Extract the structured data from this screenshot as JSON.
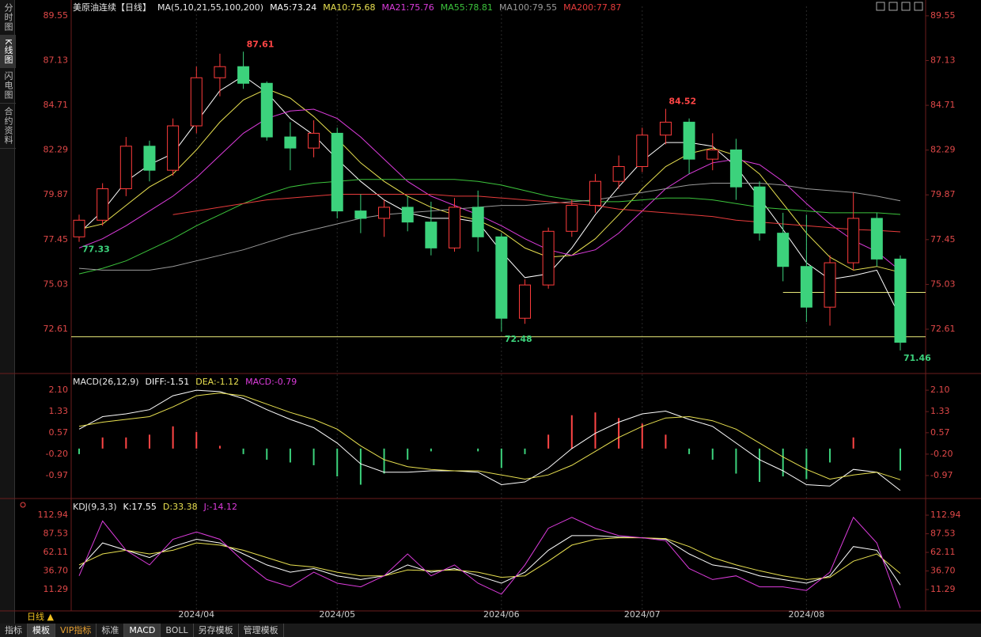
{
  "sidebar": [
    "分时图",
    "K线图",
    "闪电图",
    "合约资料"
  ],
  "period": "日线 ▲",
  "tabs": [
    "指标",
    "模板",
    "VIP指标",
    "标准",
    "MACD",
    "BOLL",
    "另存模板",
    "管理模板"
  ],
  "chart_data": [
    {
      "type": "candlestick",
      "title": "美原油连续【日线】",
      "indicator": "MA(5,10,21,55,100,200)",
      "categories": [
        null,
        null,
        null,
        null,
        null,
        "2024/04",
        null,
        null,
        null,
        null,
        null,
        "2024/05",
        null,
        null,
        null,
        null,
        null,
        null,
        "2024/06",
        null,
        null,
        null,
        null,
        null,
        "2024/07",
        null,
        null,
        null,
        null,
        null,
        null,
        "2024/08",
        null,
        null,
        null,
        null
      ],
      "open": [
        77.6,
        78.5,
        80.2,
        82.5,
        81.2,
        83.6,
        86.2,
        86.8,
        85.9,
        83.0,
        82.4,
        83.2,
        79.0,
        78.6,
        79.2,
        78.4,
        77.0,
        79.2,
        77.6,
        73.2,
        75.0,
        77.9,
        79.3,
        80.6,
        81.4,
        83.1,
        83.8,
        81.8,
        82.3,
        80.3,
        77.8,
        76.0,
        73.8,
        76.2,
        78.6,
        76.4
      ],
      "high": [
        78.8,
        80.5,
        83.0,
        82.8,
        84.0,
        86.8,
        87.5,
        87.61,
        86.0,
        83.8,
        83.9,
        83.5,
        79.9,
        79.6,
        79.8,
        79.5,
        79.7,
        80.1,
        77.8,
        75.3,
        78.1,
        79.6,
        81.0,
        82.0,
        83.5,
        84.52,
        84.0,
        83.2,
        82.9,
        80.6,
        78.9,
        78.8,
        76.6,
        80.0,
        78.9,
        76.6
      ],
      "low": [
        77.33,
        78.2,
        79.8,
        80.6,
        80.9,
        83.2,
        85.2,
        85.6,
        82.8,
        81.2,
        81.9,
        78.6,
        77.8,
        77.6,
        77.9,
        76.6,
        76.8,
        76.8,
        72.48,
        72.9,
        74.8,
        77.6,
        78.9,
        80.2,
        81.1,
        82.6,
        81.0,
        81.2,
        79.6,
        77.4,
        75.2,
        73.0,
        72.8,
        75.8,
        76.0,
        71.46
      ],
      "close": [
        78.5,
        80.2,
        82.5,
        81.2,
        83.6,
        86.2,
        86.8,
        85.9,
        83.0,
        82.4,
        83.2,
        79.0,
        78.6,
        79.2,
        78.4,
        77.0,
        79.2,
        77.6,
        73.2,
        75.0,
        77.9,
        79.3,
        80.6,
        81.4,
        83.1,
        83.8,
        81.8,
        82.3,
        80.3,
        77.8,
        76.0,
        73.8,
        76.2,
        78.6,
        76.4,
        71.9
      ],
      "up_color": "#ff3c3c",
      "down_color": "#3cd27c",
      "annotations": [
        {
          "index": 7,
          "field": "high",
          "color": "#ff4545"
        },
        {
          "index": 25,
          "field": "high",
          "color": "#ff4545"
        },
        {
          "index": 0,
          "field": "low",
          "color": "#3cd27c"
        },
        {
          "index": 18,
          "field": "low",
          "color": "#3cd27c"
        },
        {
          "index": 35,
          "field": "low",
          "color": "#3cd27c"
        }
      ],
      "hlines": [
        {
          "value": 72.2,
          "color": "#e8e878"
        },
        {
          "value": 74.6,
          "start": 30,
          "color": "#e8e878"
        }
      ],
      "series": [
        {
          "name": "MA5",
          "label": "MA5:73.24",
          "color": "#ffffff",
          "values": [
            77.8,
            79.0,
            80.6,
            81.5,
            82.1,
            83.8,
            85.5,
            86.3,
            85.4,
            84.0,
            83.1,
            81.8,
            80.6,
            79.6,
            78.9,
            78.6,
            78.6,
            78.4,
            76.8,
            75.4,
            75.6,
            77.0,
            78.8,
            80.3,
            81.7,
            82.7,
            82.7,
            82.5,
            81.4,
            79.7,
            78.0,
            76.2,
            75.3,
            75.5,
            75.8,
            73.24
          ]
        },
        {
          "name": "MA10",
          "label": "MA10:75.68",
          "color": "#e8e050",
          "values": [
            78.0,
            78.3,
            79.3,
            80.3,
            81.0,
            82.3,
            83.8,
            85.0,
            85.6,
            85.1,
            84.1,
            82.9,
            81.6,
            80.6,
            79.8,
            79.2,
            78.8,
            78.5,
            77.9,
            77.0,
            76.5,
            76.6,
            77.5,
            78.8,
            80.2,
            81.4,
            82.1,
            82.4,
            82.0,
            81.0,
            79.4,
            77.8,
            76.5,
            75.8,
            76.0,
            75.68
          ]
        },
        {
          "name": "MA21",
          "label": "MA21:75.76",
          "color": "#dd3cdd",
          "values": [
            77.0,
            77.5,
            78.2,
            79.0,
            79.8,
            80.8,
            82.0,
            83.2,
            84.0,
            84.4,
            84.5,
            84.0,
            83.0,
            81.8,
            80.6,
            79.8,
            79.3,
            78.8,
            78.2,
            77.5,
            76.9,
            76.6,
            76.9,
            77.8,
            79.0,
            80.2,
            81.0,
            81.6,
            81.8,
            81.5,
            80.6,
            79.4,
            78.3,
            77.4,
            76.8,
            75.76
          ]
        },
        {
          "name": "MA55",
          "label": "MA55:78.81",
          "color": "#3cc43c",
          "values": [
            75.6,
            75.9,
            76.3,
            76.9,
            77.5,
            78.2,
            78.8,
            79.4,
            79.9,
            80.3,
            80.5,
            80.6,
            80.7,
            80.7,
            80.7,
            80.7,
            80.7,
            80.6,
            80.4,
            80.1,
            79.8,
            79.6,
            79.5,
            79.5,
            79.6,
            79.7,
            79.7,
            79.6,
            79.4,
            79.2,
            79.1,
            79.0,
            78.9,
            78.9,
            78.9,
            78.81
          ]
        },
        {
          "name": "MA100",
          "label": "MA100:79.55",
          "color": "#9a9a9a",
          "values": [
            75.9,
            75.8,
            75.8,
            75.8,
            76.0,
            76.3,
            76.6,
            76.9,
            77.3,
            77.7,
            78.0,
            78.3,
            78.6,
            78.8,
            78.9,
            79.0,
            79.1,
            79.2,
            79.3,
            79.3,
            79.4,
            79.5,
            79.6,
            79.8,
            80.0,
            80.2,
            80.4,
            80.5,
            80.5,
            80.5,
            80.4,
            80.2,
            80.1,
            80.0,
            79.8,
            79.55
          ]
        },
        {
          "name": "MA200",
          "label": "MA200:77.87",
          "color": "#e83c3c",
          "values": [
            null,
            null,
            null,
            null,
            78.8,
            79.0,
            79.2,
            79.4,
            79.6,
            79.7,
            79.8,
            79.9,
            79.9,
            79.9,
            79.9,
            79.9,
            79.8,
            79.8,
            79.7,
            79.6,
            79.5,
            79.4,
            79.3,
            79.1,
            79.0,
            78.9,
            78.8,
            78.7,
            78.5,
            78.4,
            78.3,
            78.2,
            78.1,
            78.0,
            77.95,
            77.87
          ]
        }
      ],
      "ylim": [
        70.3,
        90.06
      ],
      "yticks": [
        89.55,
        87.13,
        84.71,
        82.29,
        79.87,
        77.45,
        75.03,
        72.61
      ]
    },
    {
      "type": "macd",
      "title": "MACD(26,12,9)",
      "series": [
        {
          "name": "DIFF",
          "label": "DIFF:-1.51",
          "color": "#ffffff",
          "values": [
            0.7,
            1.15,
            1.25,
            1.4,
            1.9,
            2.1,
            2.05,
            1.8,
            1.4,
            1.05,
            0.75,
            0.2,
            -0.55,
            -0.85,
            -0.85,
            -0.8,
            -0.8,
            -0.85,
            -1.3,
            -1.2,
            -0.7,
            0.0,
            0.55,
            0.95,
            1.25,
            1.35,
            1.05,
            0.8,
            0.2,
            -0.4,
            -0.8,
            -1.3,
            -1.35,
            -0.75,
            -0.85,
            -1.51
          ]
        },
        {
          "name": "DEA",
          "label": "DEA:-1.12",
          "color": "#e8e050",
          "values": [
            0.8,
            0.95,
            1.05,
            1.15,
            1.5,
            1.9,
            2.0,
            1.9,
            1.6,
            1.3,
            1.05,
            0.7,
            0.1,
            -0.4,
            -0.65,
            -0.75,
            -0.8,
            -0.8,
            -0.95,
            -1.1,
            -0.95,
            -0.6,
            -0.1,
            0.4,
            0.8,
            1.1,
            1.15,
            1.0,
            0.7,
            0.2,
            -0.3,
            -0.75,
            -1.1,
            -0.95,
            -0.85,
            -1.12
          ]
        },
        {
          "name": "MACD",
          "label": "MACD:-0.79",
          "color": "#dd3cdd",
          "kind": "bar",
          "up_color": "#ff4545",
          "down_color": "#3cd27c",
          "values": [
            -0.2,
            0.4,
            0.4,
            0.5,
            0.8,
            0.6,
            0.1,
            -0.2,
            -0.4,
            -0.5,
            -0.6,
            -1.0,
            -1.3,
            -0.9,
            -0.4,
            -0.1,
            0.0,
            -0.1,
            -0.7,
            -0.2,
            0.5,
            1.2,
            1.3,
            1.1,
            0.9,
            0.5,
            -0.2,
            -0.4,
            -0.9,
            -1.2,
            -1.0,
            -1.1,
            -0.5,
            0.4,
            0.0,
            -0.79
          ]
        }
      ],
      "ylim": [
        -1.74,
        2.53
      ],
      "yticks": [
        {
          "value": 2.1,
          "label": "2.10"
        },
        1.33,
        0.57,
        {
          "value": -0.2,
          "label": "-0.20"
        },
        -0.97
      ]
    },
    {
      "type": "kdj",
      "title": "KDJ(9,3,3)",
      "series": [
        {
          "name": "K",
          "label": "K:17.55",
          "color": "#ffffff",
          "values": [
            40,
            75,
            65,
            55,
            70,
            80,
            75,
            60,
            45,
            35,
            40,
            30,
            25,
            30,
            45,
            35,
            40,
            30,
            20,
            35,
            65,
            85,
            85,
            83,
            82,
            80,
            60,
            45,
            40,
            30,
            25,
            20,
            30,
            70,
            65,
            17.55
          ]
        },
        {
          "name": "D",
          "label": "D:33.38",
          "color": "#e8e050",
          "values": [
            45,
            60,
            65,
            60,
            65,
            75,
            72,
            65,
            55,
            45,
            42,
            35,
            30,
            30,
            38,
            37,
            38,
            35,
            28,
            30,
            50,
            72,
            80,
            82,
            82,
            81,
            70,
            55,
            45,
            37,
            30,
            25,
            28,
            50,
            60,
            33.38
          ]
        },
        {
          "name": "J",
          "label": "J:-14.12",
          "color": "#dd3cdd",
          "values": [
            30,
            105,
            65,
            45,
            80,
            90,
            80,
            50,
            25,
            15,
            35,
            20,
            15,
            30,
            60,
            30,
            45,
            20,
            5,
            45,
            95,
            110,
            95,
            85,
            82,
            78,
            40,
            25,
            30,
            15,
            15,
            10,
            35,
            110,
            75,
            -14.12
          ]
        }
      ],
      "ylim": [
        -15.7,
        129.2
      ],
      "yticks": [
        112.94,
        87.53,
        62.11,
        {
          "value": 36.7,
          "label": "36.70"
        },
        11.29
      ]
    }
  ]
}
